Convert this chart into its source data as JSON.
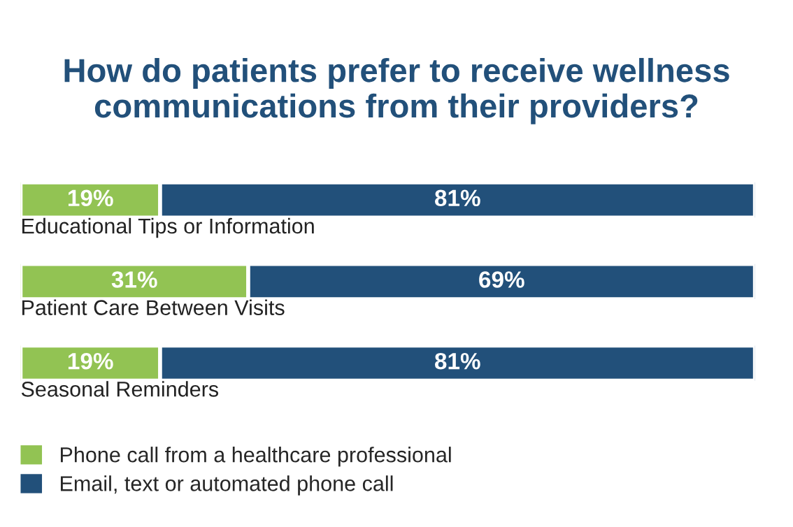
{
  "chart_data": {
    "type": "bar",
    "orientation": "horizontal",
    "stacked": true,
    "title": "How do patients prefer to receive wellness communications from their providers?",
    "categories": [
      "Educational Tips or Information",
      "Patient Care Between Visits",
      "Seasonal Reminders"
    ],
    "series": [
      {
        "name": "Phone call from a healthcare professional",
        "color": "#92c353",
        "values": [
          19,
          31,
          19
        ],
        "value_labels": [
          "19%",
          "31%",
          "19%"
        ]
      },
      {
        "name": "Email, text or automated phone call",
        "color": "#22507a",
        "values": [
          81,
          69,
          81
        ],
        "value_labels": [
          "81%",
          "69%",
          "81%"
        ]
      }
    ],
    "legend": "bottom left"
  }
}
